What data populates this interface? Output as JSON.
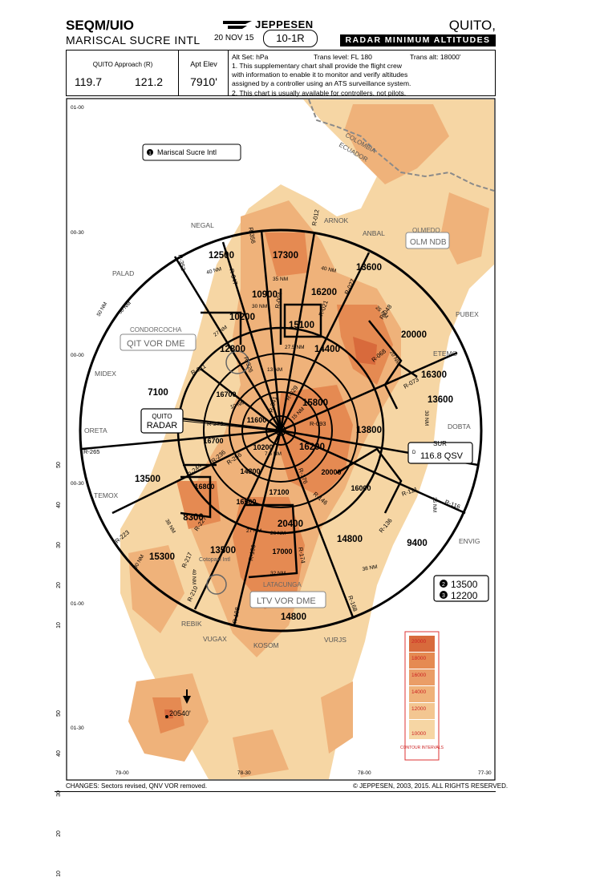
{
  "header": {
    "ident": "SEQM/UIO",
    "airport": "MARISCAL SUCRE INTL",
    "brand": "JEPPESEN",
    "date": "20 NOV 15",
    "index": "10-1R",
    "city": "QUITO, ECUADOR",
    "chart_title": "RADAR MINIMUM ALTITUDES"
  },
  "info": {
    "approach_label": "QUITO Approach (R)",
    "freq_1": "119.7",
    "freq_2": "121.2",
    "elev_label": "Apt Elev",
    "elev_value": "7910'",
    "altset": "Alt Set: hPa",
    "trans_level": "Trans level: FL 180",
    "trans_alt": "Trans alt: 18000'",
    "note_1a": "1. This supplementary chart shall provide the flight crew",
    "note_1b": "with information to enable it to monitor and verify altitudes",
    "note_1c": "assigned by a controller using an ATS surveillance system.",
    "note_2": "2. This chart is usually available for controllers, not pilots."
  },
  "map": {
    "colors": {
      "terrain_light": "#f6d6a4",
      "terrain_mid": "#efb27a",
      "terrain_dark": "#e58a52",
      "terrain_darkest": "#d86a3c",
      "border": "#8a8a8a"
    },
    "airport_box": "Mariscal Sucre Intl",
    "airport_box_num": "1",
    "lat_labels": [
      "01-00",
      "00-30",
      "00-00",
      "00-30",
      "01-00",
      "01-30"
    ],
    "lon_labels": [
      "79-00",
      "78-30",
      "78-00",
      "77-30"
    ],
    "side_ticks": [
      "50",
      "40",
      "30",
      "20",
      "10",
      "50",
      "40",
      "30",
      "20",
      "10"
    ],
    "countries": [
      "COLOMBIA",
      "ECUADOR"
    ],
    "fixes": [
      "NEGAL",
      "ARNOK",
      "ANBAL",
      "PALAD",
      "PUBEX",
      "ETEMO",
      "MIDEX",
      "ORETA",
      "DOBTA",
      "TEMOX",
      "ENVIG",
      "REBIK",
      "VUGAX",
      "KOSOM",
      "VURJS"
    ],
    "navaids": {
      "condorcocha_name": "CONDORCOCHA",
      "condorcocha_id": "QIT VOR DME",
      "olmedo_name": "OLMEDO",
      "olmedo_id": "OLM NDB",
      "latacunga_name": "LATACUNGA",
      "latacunga_id": "LTV VOR DME",
      "sur_name": "SUR",
      "sur_freq": "116.8 QSV",
      "sur_d": "D",
      "cotopaxi": "Cotopaxi Intl"
    },
    "radar_label_1": "QUITO",
    "radar_label_2": "RADAR",
    "sector_altitudes": [
      "12500",
      "17300",
      "13600",
      "10900",
      "16200",
      "10200",
      "15100",
      "14400",
      "12800",
      "20000",
      "16300",
      "13600",
      "7100",
      "15800",
      "13800",
      "16700",
      "11600",
      "16700",
      "10200",
      "16200",
      "14800",
      "20000",
      "13500",
      "16800",
      "16500",
      "17100",
      "16000",
      "8300",
      "20400",
      "14800",
      "9400",
      "15300",
      "13500",
      "17000",
      "14800"
    ],
    "radials": [
      "R-356",
      "R-012",
      "R-347",
      "R-352",
      "R-004",
      "R-021",
      "R-027",
      "R-048",
      "R-068",
      "R-073",
      "R-311",
      "R-326",
      "R-029",
      "R-341",
      "R-093",
      "R-273",
      "R-265",
      "R-256",
      "R-244",
      "R-236",
      "R-176",
      "R-146",
      "R-121",
      "R-116",
      "R-136",
      "R-223",
      "R-227",
      "R-217",
      "R-210",
      "R-190",
      "R-174",
      "R-198",
      "R-168"
    ],
    "ranges": [
      "40 NM",
      "35 NM",
      "30 NM",
      "40 NM",
      "50 NM",
      "27 NM",
      "27.5 NM",
      "13 NM",
      "10 NM",
      "7.5 NM",
      "15 NM",
      "25 NM",
      "30 NM",
      "20 NM",
      "27 NM",
      "26 NM",
      "32 NM",
      "50 NM",
      "38 NM",
      "38 NM",
      "40 NM",
      "30 NM",
      "35 NM"
    ],
    "msa_1": "13500",
    "msa_2": "12200",
    "msa_n1": "2",
    "msa_n2": "3",
    "spot_elev": "20540'",
    "contour_title": "CONTOUR INTERVALS",
    "contour_values": [
      "20000",
      "18000",
      "16000",
      "14000",
      "12000",
      "10000"
    ],
    "contour_colors": [
      "#d86a3c",
      "#e58a52",
      "#ea9d67",
      "#efb27a",
      "#f3c691",
      "#f6d6a4"
    ]
  },
  "footer": {
    "changes": "CHANGES: Sectors revised, QNV VOR removed.",
    "copyright": "© JEPPESEN, 2003, 2015. ALL RIGHTS RESERVED."
  }
}
